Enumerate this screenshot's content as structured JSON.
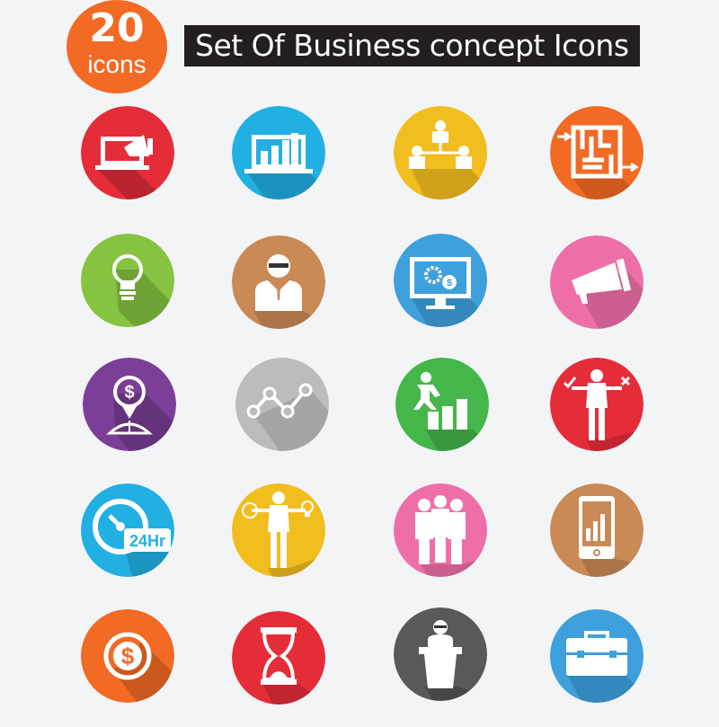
{
  "badge": {
    "number": "20",
    "label": "icons",
    "color": "#f26a24"
  },
  "title": "Set Of Business concept Icons",
  "icons": [
    {
      "name": "laptop-megaphone-icon",
      "color": "#e52d3a"
    },
    {
      "name": "laptop-bar-chart-icon",
      "color": "#22b0e3"
    },
    {
      "name": "team-hierarchy-icon",
      "color": "#f2bd1f"
    },
    {
      "name": "maze-icon",
      "color": "#f26a24"
    },
    {
      "name": "lightbulb-icon",
      "color": "#86c341"
    },
    {
      "name": "businessman-icon",
      "color": "#c98a56"
    },
    {
      "name": "monitor-gears-dollar-icon",
      "color": "#3ea0dc"
    },
    {
      "name": "megaphone-icon",
      "color": "#ee6fa8"
    },
    {
      "name": "dollar-globe-pin-icon",
      "color": "#7b3f98"
    },
    {
      "name": "growth-steps-icon",
      "color": "#bcbcbc"
    },
    {
      "name": "climbing-bars-icon",
      "color": "#45b649"
    },
    {
      "name": "businessman-choice-icon",
      "color": "#e52d3a"
    },
    {
      "name": "clock-24hr-icon",
      "color": "#22b0e3",
      "label": "24Hr"
    },
    {
      "name": "businessman-money-idea-icon",
      "color": "#f2bd1f"
    },
    {
      "name": "business-team-icon",
      "color": "#ee6fa8"
    },
    {
      "name": "tablet-chart-icon",
      "color": "#c98a56"
    },
    {
      "name": "dollar-coin-icon",
      "color": "#f26a24"
    },
    {
      "name": "hourglass-icon",
      "color": "#e52d3a"
    },
    {
      "name": "speaker-podium-icon",
      "color": "#58595b"
    },
    {
      "name": "briefcase-icon",
      "color": "#3ea0dc"
    }
  ]
}
